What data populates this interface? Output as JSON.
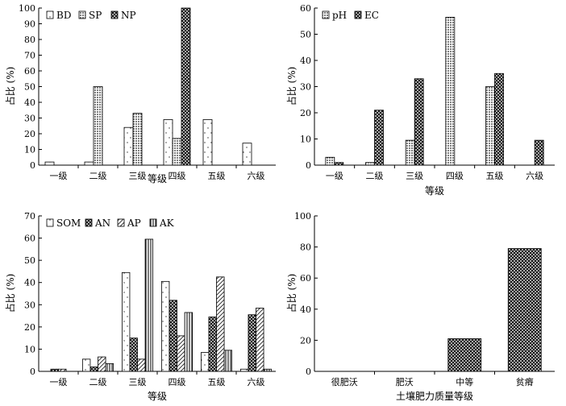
{
  "chart_data": [
    {
      "type": "bar",
      "panel": "top-left",
      "categories": [
        "一级",
        "二级",
        "三级",
        "四级",
        "五级",
        "六级"
      ],
      "series": [
        {
          "name": "BD",
          "pattern": "white",
          "values": [
            2,
            2,
            24,
            29,
            29,
            14
          ]
        },
        {
          "name": "SP",
          "pattern": "dots",
          "values": [
            0,
            50,
            33,
            17,
            0,
            0
          ]
        },
        {
          "name": "NP",
          "pattern": "cross",
          "values": [
            0,
            0,
            0,
            100,
            0,
            0
          ]
        }
      ],
      "ylim": [
        0,
        100
      ],
      "yticks": [
        "0",
        "10",
        "20",
        "30",
        "40",
        "50",
        "60",
        "70",
        "80",
        "90",
        "100"
      ],
      "ytick_values": [
        0,
        10,
        20,
        30,
        40,
        50,
        60,
        70,
        80,
        90,
        100
      ],
      "xlabel": "等级",
      "ylabel": "占比 (%)",
      "legend_loc": "top-left"
    },
    {
      "type": "bar",
      "panel": "top-right",
      "categories": [
        "一级",
        "二级",
        "三级",
        "四级",
        "五级",
        "六级"
      ],
      "series": [
        {
          "name": "pH",
          "pattern": "dots",
          "values": [
            3,
            1,
            9.5,
            56.5,
            30,
            0
          ]
        },
        {
          "name": "EC",
          "pattern": "cross",
          "values": [
            1,
            21,
            33,
            0,
            35,
            9.5
          ]
        }
      ],
      "ylim": [
        0,
        60
      ],
      "yticks": [
        "0",
        "10",
        "20",
        "30",
        "40",
        "50",
        "60"
      ],
      "ytick_values": [
        0,
        10,
        20,
        30,
        40,
        50,
        60
      ],
      "xlabel": "等级",
      "ylabel": "占比 (%)",
      "legend_loc": "top-left"
    },
    {
      "type": "bar",
      "panel": "bottom-left",
      "categories": [
        "一级",
        "二级",
        "三级",
        "四级",
        "五级",
        "六级"
      ],
      "series": [
        {
          "name": "SOM",
          "pattern": "white",
          "values": [
            0,
            5.5,
            44.5,
            40.5,
            8.5,
            1
          ]
        },
        {
          "name": "AN",
          "pattern": "cross",
          "values": [
            1,
            2,
            15,
            32,
            24.5,
            25.5
          ]
        },
        {
          "name": "AP",
          "pattern": "diag",
          "values": [
            1,
            6.5,
            5.5,
            16,
            42.5,
            28.5
          ]
        },
        {
          "name": "AK",
          "pattern": "vert",
          "values": [
            0,
            3.5,
            59.5,
            26.5,
            9.5,
            1
          ]
        }
      ],
      "ylim": [
        0,
        70
      ],
      "yticks": [
        "0",
        "10",
        "20",
        "30",
        "40",
        "50",
        "60",
        "70"
      ],
      "ytick_values": [
        0,
        10,
        20,
        30,
        40,
        50,
        60,
        70
      ],
      "xlabel": "等级",
      "ylabel": "占比 (%)",
      "legend_loc": "top-left"
    },
    {
      "type": "bar",
      "panel": "bottom-right",
      "categories": [
        "很肥沃",
        "肥沃",
        "中等",
        "贫瘠"
      ],
      "series": [
        {
          "name": "",
          "pattern": "cross",
          "values": [
            0,
            0,
            21,
            79
          ]
        }
      ],
      "ylim": [
        0,
        100
      ],
      "yticks": [
        "0",
        "20",
        "40",
        "60",
        "80",
        "100"
      ],
      "ytick_values": [
        0,
        20,
        40,
        60,
        80,
        100
      ],
      "xlabel": "土壤肥力质量等级",
      "ylabel": "占比 (%)",
      "legend_loc": "none"
    }
  ]
}
